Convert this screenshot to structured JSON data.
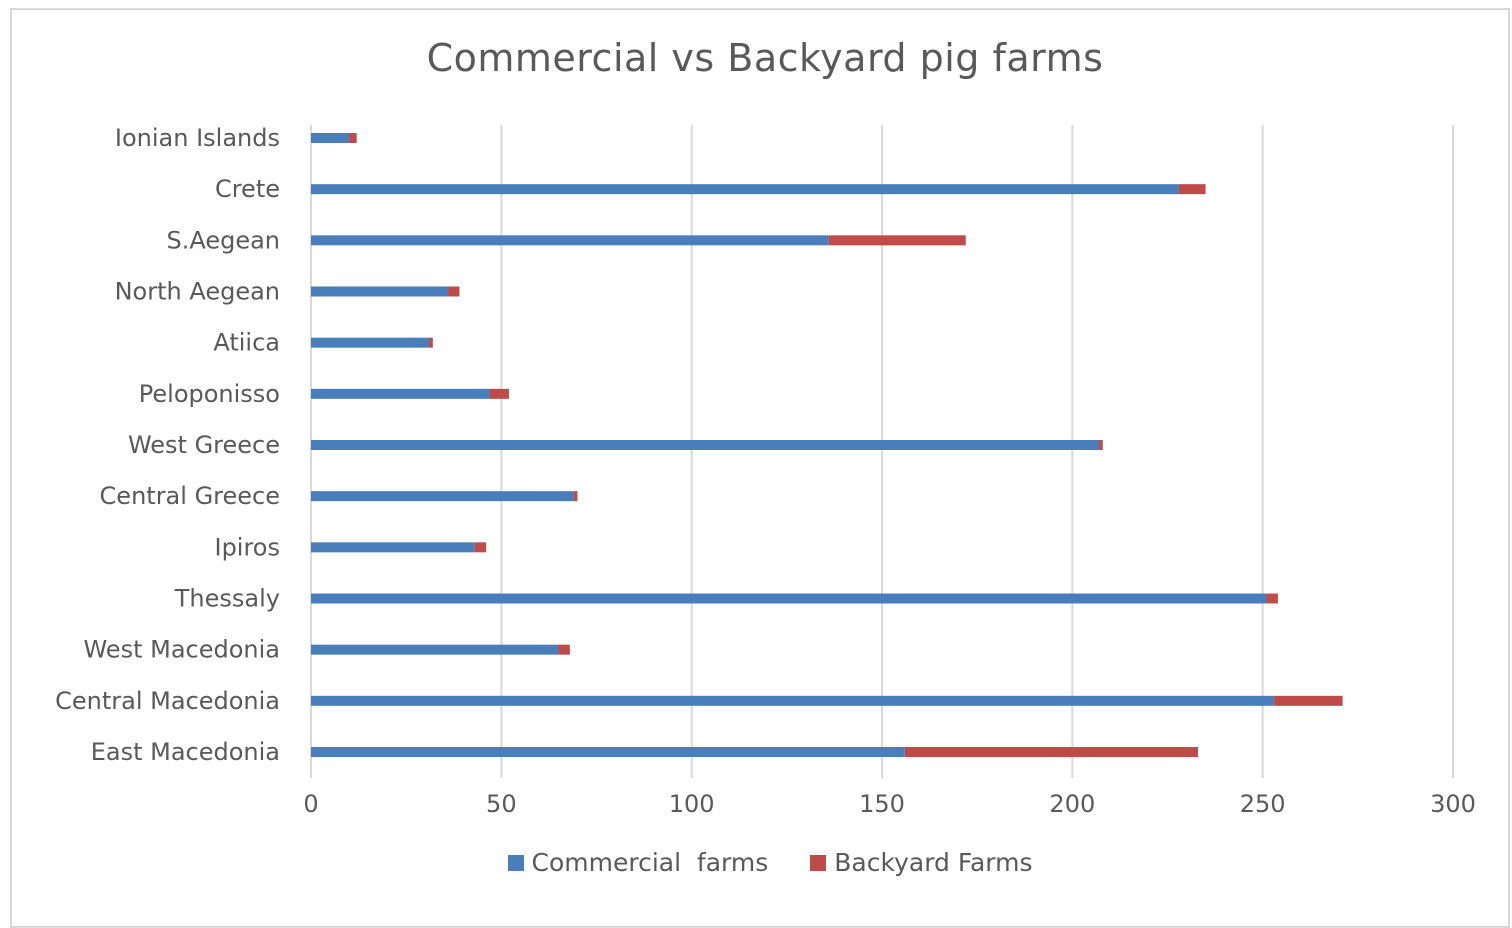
{
  "chart_data": {
    "type": "bar",
    "orientation": "horizontal",
    "stacked": true,
    "title": "Commercial vs Backyard pig farms",
    "categories": [
      "East Macedonia",
      "Central Macedonia",
      "West Macedonia",
      "Thessaly",
      "Ipiros",
      "Central Greece",
      "West Greece",
      "Peloponisso",
      "Atiica",
      "North Aegean",
      "S.Aegean",
      "Crete",
      "Ionian Islands"
    ],
    "series": [
      {
        "name": "Commercial  farms",
        "color": "#4a7ebb",
        "values": [
          156,
          253,
          65,
          251,
          43,
          69,
          207,
          47,
          31,
          36,
          136,
          228,
          10
        ]
      },
      {
        "name": "Backyard Farms",
        "color": "#be4b48",
        "values": [
          77,
          18,
          3,
          3,
          3,
          1,
          1,
          5,
          1,
          3,
          36,
          7,
          2
        ]
      }
    ],
    "xlim": [
      0,
      300
    ],
    "xticks": [
      0,
      50,
      100,
      150,
      200,
      250,
      300
    ],
    "grid": true,
    "legend_position": "bottom"
  }
}
